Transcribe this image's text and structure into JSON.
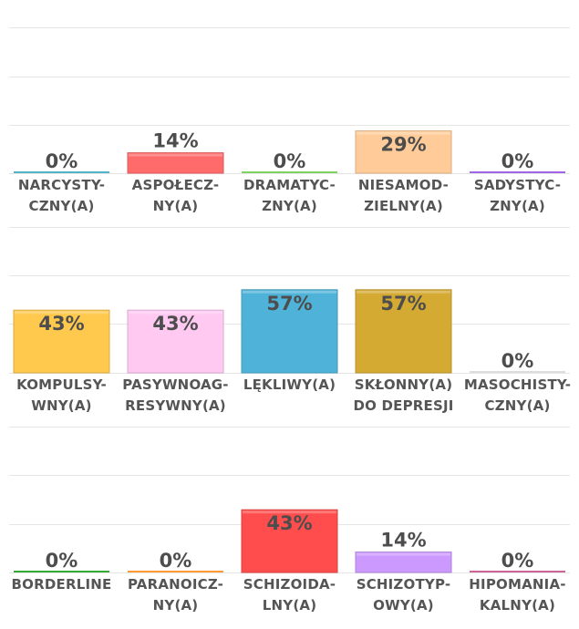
{
  "chart_data": [
    {
      "type": "bar",
      "ylim": [
        0,
        100
      ],
      "grid": true,
      "bars": [
        {
          "label_lines": [
            "NARCYSTY-",
            "CZNY(A)"
          ],
          "value": 0,
          "value_label": "0%",
          "color": "#4fb3c9"
        },
        {
          "label_lines": [
            "ASPOŁECZ-",
            "NY(A)"
          ],
          "value": 14,
          "value_label": "14%",
          "color": "#ff6b6b"
        },
        {
          "label_lines": [
            "DRAMATYC-",
            "ZNY(A)"
          ],
          "value": 0,
          "value_label": "0%",
          "color": "#7dd35f"
        },
        {
          "label_lines": [
            "NIESAMOD-",
            "ZIELNY(A)"
          ],
          "value": 29,
          "value_label": "29%",
          "color": "#ffcc99"
        },
        {
          "label_lines": [
            "SADYSTYC-",
            "ZNY(A)"
          ],
          "value": 0,
          "value_label": "0%",
          "color": "#a066e8"
        }
      ]
    },
    {
      "type": "bar",
      "ylim": [
        0,
        100
      ],
      "grid": true,
      "bars": [
        {
          "label_lines": [
            "KOMPULSY-",
            "WNY(A)"
          ],
          "value": 43,
          "value_label": "43%",
          "color": "#ffc94d"
        },
        {
          "label_lines": [
            "PASYWNOAG-",
            "RESYWNY(A)"
          ],
          "value": 43,
          "value_label": "43%",
          "color": "#ffc9f2"
        },
        {
          "label_lines": [
            "LĘKLIWY(A)"
          ],
          "value": 57,
          "value_label": "57%",
          "color": "#4fb3d9"
        },
        {
          "label_lines": [
            "SKŁONNY(A)",
            "DO DEPRESJI"
          ],
          "value": 57,
          "value_label": "57%",
          "color": "#d4aa33"
        },
        {
          "label_lines": [
            "MASOCHISTY-",
            "CZNY(A)"
          ],
          "value": 0,
          "value_label": "0%",
          "color": "#dddddd"
        }
      ]
    },
    {
      "type": "bar",
      "ylim": [
        0,
        100
      ],
      "grid": true,
      "bars": [
        {
          "label_lines": [
            "BORDERLINE"
          ],
          "value": 0,
          "value_label": "0%",
          "color": "#33aa33"
        },
        {
          "label_lines": [
            "PARANOICZ-",
            "NY(A)"
          ],
          "value": 0,
          "value_label": "0%",
          "color": "#ff9933"
        },
        {
          "label_lines": [
            "SCHIZOIDA-",
            "LNY(A)"
          ],
          "value": 43,
          "value_label": "43%",
          "color": "#ff4d4d"
        },
        {
          "label_lines": [
            "SCHIZOTYP-",
            "OWY(A)"
          ],
          "value": 14,
          "value_label": "14%",
          "color": "#cc99ff"
        },
        {
          "label_lines": [
            "HIPOMANIA-",
            "KALNY(A)"
          ],
          "value": 0,
          "value_label": "0%",
          "color": "#cc6699"
        }
      ]
    }
  ]
}
